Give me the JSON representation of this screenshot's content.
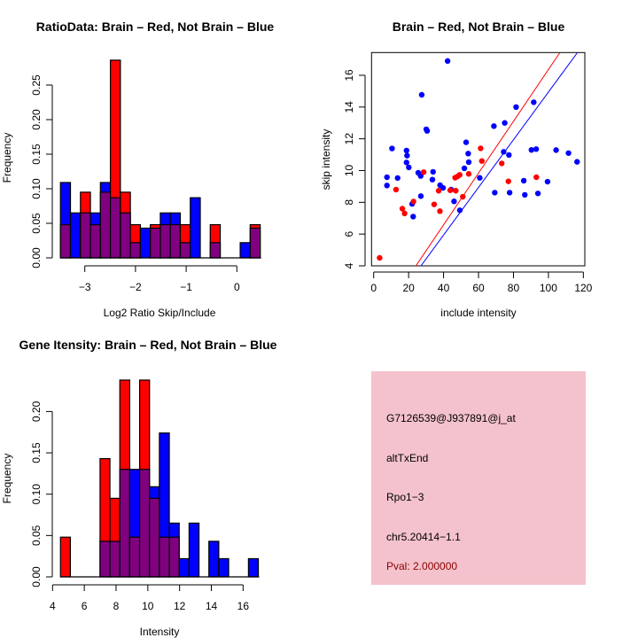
{
  "chart_data": [
    {
      "type": "bar",
      "subtype": "histogram-overlay",
      "title": "RatioData: Brain – Red, Not Brain – Blue",
      "xlabel": "Log2 Ratio Skip/Include",
      "ylabel": "Frequency",
      "bin_start": -3.48,
      "bin_width": 0.197,
      "series": [
        {
          "name": "Brain",
          "color": "#ff0000",
          "values": [
            0.048,
            0,
            0.095,
            0.048,
            0.095,
            0.286,
            0.095,
            0.048,
            0,
            0.048,
            0.048,
            0.048,
            0.048,
            0,
            0,
            0.048,
            0,
            0,
            0,
            0.048
          ]
        },
        {
          "name": "Not Brain",
          "color": "#0000ff",
          "values": [
            0.109,
            0.065,
            0.065,
            0.065,
            0.109,
            0.087,
            0.065,
            0.022,
            0.043,
            0.043,
            0.065,
            0.065,
            0.022,
            0.087,
            0,
            0.022,
            0,
            0,
            0.022,
            0.043
          ]
        }
      ],
      "overlap_color": "#800080",
      "xticks": [
        -3,
        -2,
        -1,
        0
      ],
      "xtick_labels": [
        "−3",
        "−2",
        "−1",
        "0"
      ],
      "yticks": [
        0,
        0.05,
        0.1,
        0.15,
        0.2,
        0.25
      ],
      "ytick_labels": [
        "0.00",
        "0.05",
        "0.10",
        "0.15",
        "0.20",
        "0.25"
      ],
      "xlim": [
        -3.5,
        0.5
      ],
      "ylim": [
        0,
        0.29
      ]
    },
    {
      "type": "scatter",
      "title": "Brain – Red, Not Brain – Blue",
      "xlabel": "include intensity",
      "ylabel": "skip intensity",
      "xlim": [
        -1.2,
        120.8
      ],
      "ylim": [
        4,
        17.4
      ],
      "xticks": [
        0,
        20,
        40,
        60,
        80,
        100,
        120
      ],
      "xtick_labels": [
        "0",
        "20",
        "40",
        "60",
        "80",
        "100",
        "120"
      ],
      "yticks": [
        4,
        6,
        8,
        10,
        12,
        14,
        16
      ],
      "ytick_labels": [
        "4",
        "6",
        "8",
        "10",
        "12",
        "14",
        "16"
      ],
      "series": [
        {
          "name": "Not Brain",
          "color": "#0000ff",
          "points": [
            [
              7.6,
              9.58
            ],
            [
              7.6,
              9.06
            ],
            [
              10.5,
              11.39
            ],
            [
              13.7,
              9.53
            ],
            [
              18.8,
              11.26
            ],
            [
              19.1,
              10.94
            ],
            [
              18.8,
              10.51
            ],
            [
              20.1,
              10.2
            ],
            [
              22.0,
              7.9
            ],
            [
              22.6,
              7.1
            ],
            [
              25.5,
              9.86
            ],
            [
              26.9,
              9.66
            ],
            [
              27.0,
              8.39
            ],
            [
              27.5,
              14.77
            ],
            [
              30.1,
              12.6
            ],
            [
              30.6,
              12.5
            ],
            [
              33.6,
              9.43
            ],
            [
              34.0,
              9.92
            ],
            [
              38.0,
              9.08
            ],
            [
              39.7,
              8.91
            ],
            [
              42.3,
              16.9
            ],
            [
              44.3,
              8.8
            ],
            [
              46.0,
              8.06
            ],
            [
              49.3,
              7.5
            ],
            [
              51.9,
              10.14
            ],
            [
              52.9,
              11.78
            ],
            [
              54.1,
              11.07
            ],
            [
              54.4,
              10.53
            ],
            [
              60.7,
              9.54
            ],
            [
              68.8,
              12.8
            ],
            [
              69.3,
              8.61
            ],
            [
              75.0,
              13.0
            ],
            [
              74.4,
              11.18
            ],
            [
              77.4,
              10.98
            ],
            [
              77.8,
              8.61
            ],
            [
              81.5,
              14.0
            ],
            [
              85.9,
              9.36
            ],
            [
              86.5,
              8.47
            ],
            [
              90.3,
              11.3
            ],
            [
              91.6,
              14.3
            ],
            [
              93.0,
              11.35
            ],
            [
              94.0,
              8.56
            ],
            [
              99.5,
              9.3
            ],
            [
              104.4,
              11.29
            ],
            [
              111.5,
              11.1
            ],
            [
              116.4,
              10.55
            ]
          ]
        },
        {
          "name": "Brain",
          "color": "#ff0000",
          "points": [
            [
              3.4,
              4.5
            ],
            [
              12.8,
              8.8
            ],
            [
              16.4,
              7.6
            ],
            [
              17.7,
              7.3
            ],
            [
              22.8,
              8.05
            ],
            [
              28.6,
              9.9
            ],
            [
              34.6,
              7.87
            ],
            [
              37.2,
              8.73
            ],
            [
              37.9,
              7.44
            ],
            [
              43.8,
              8.76
            ],
            [
              47.0,
              8.73
            ],
            [
              46.6,
              9.55
            ],
            [
              48.0,
              9.63
            ],
            [
              49.2,
              9.73
            ],
            [
              51.0,
              8.35
            ],
            [
              54.4,
              9.79
            ],
            [
              61.2,
              11.4
            ],
            [
              61.9,
              10.6
            ],
            [
              73.3,
              10.45
            ],
            [
              77.1,
              9.32
            ],
            [
              93.1,
              9.58
            ]
          ]
        }
      ],
      "fit_lines": [
        {
          "name": "Brain fit",
          "color": "#ff0000",
          "slope": 0.163,
          "intercept": 0.06
        },
        {
          "name": "Not Brain fit",
          "color": "#0000ff",
          "slope": 0.15,
          "intercept": -0.06
        }
      ]
    },
    {
      "type": "bar",
      "subtype": "histogram-overlay",
      "title": "Gene Itensity: Brain – Red, Not Brain – Blue",
      "xlabel": "Intensity",
      "ylabel": "Frequency",
      "bin_start": 4.5,
      "bin_width": 0.623,
      "series": [
        {
          "name": "Brain",
          "color": "#ff0000",
          "values": [
            0.048,
            0,
            0,
            0,
            0.143,
            0.095,
            0.238,
            0.048,
            0.238,
            0.095,
            0.048,
            0.048,
            0,
            0,
            0,
            0,
            0,
            0,
            0,
            0
          ]
        },
        {
          "name": "Not Brain",
          "color": "#0000ff",
          "values": [
            0,
            0,
            0,
            0,
            0.043,
            0.043,
            0.13,
            0.13,
            0.13,
            0.109,
            0.174,
            0.065,
            0.022,
            0.065,
            0,
            0.043,
            0.022,
            0,
            0,
            0.022
          ]
        }
      ],
      "overlap_color": "#800080",
      "xticks": [
        4,
        6,
        8,
        10,
        12,
        14,
        16
      ],
      "xtick_labels": [
        "4",
        "6",
        "8",
        "10",
        "12",
        "14",
        "16"
      ],
      "yticks": [
        0,
        0.05,
        0.1,
        0.15,
        0.2
      ],
      "ytick_labels": [
        "0.00",
        "0.05",
        "0.10",
        "0.15",
        "0.20"
      ],
      "xlim": [
        4,
        17.4
      ],
      "ylim": [
        0,
        0.24
      ]
    }
  ],
  "info_panel": {
    "background": "#f4c2cc",
    "lines": [
      "G7126539@J937891@j_at",
      "altTxEnd",
      "Rpo1−3",
      "chr5.20414−1.1"
    ],
    "pval": "Pval: 2.000000",
    "pval_color": "#8b0000"
  }
}
